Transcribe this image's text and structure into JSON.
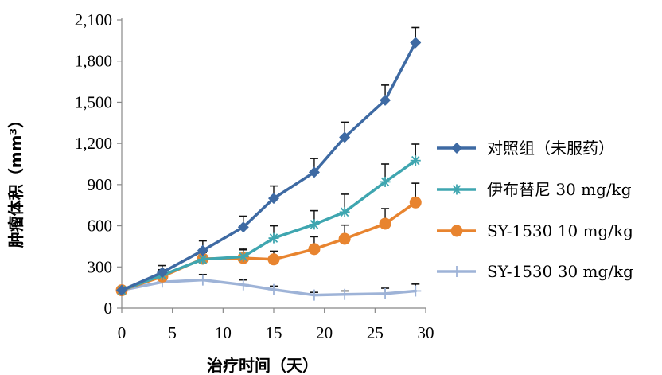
{
  "chart_data": {
    "type": "line",
    "xlabel": "治疗时间（天）",
    "ylabel": "肿瘤体积（mm³）",
    "xlim": [
      0,
      30
    ],
    "ylim": [
      0,
      2100
    ],
    "x_ticks": [
      "0",
      "5",
      "10",
      "15",
      "20",
      "25",
      "30"
    ],
    "y_ticks": [
      "0",
      "300",
      "600",
      "900",
      "1,200",
      "1,500",
      "1,800",
      "2,100"
    ],
    "legend_position": "right",
    "grid": false,
    "series": [
      {
        "name": "对照组（未服药）",
        "color": "#3E6AA3",
        "marker": "diamond",
        "x": [
          0,
          4,
          8,
          12,
          15,
          19,
          22,
          26,
          29
        ],
        "y": [
          130,
          260,
          420,
          590,
          800,
          990,
          1245,
          1515,
          1935
        ],
        "err": [
          0,
          50,
          70,
          80,
          90,
          100,
          110,
          110,
          110
        ]
      },
      {
        "name": "伊布替尼 30 mg/kg",
        "color": "#3FA6B0",
        "marker": "asterisk",
        "x": [
          0,
          4,
          8,
          12,
          15,
          19,
          22,
          26,
          29
        ],
        "y": [
          130,
          240,
          355,
          375,
          510,
          610,
          700,
          920,
          1075
        ],
        "err": [
          0,
          40,
          50,
          50,
          90,
          100,
          130,
          130,
          120
        ]
      },
      {
        "name": "SY-1530 10 mg/kg",
        "color": "#E8842F",
        "marker": "circle",
        "x": [
          0,
          4,
          8,
          12,
          15,
          19,
          22,
          26,
          29
        ],
        "y": [
          130,
          230,
          360,
          365,
          355,
          430,
          505,
          615,
          770
        ],
        "err": [
          0,
          40,
          60,
          70,
          60,
          90,
          100,
          110,
          140
        ]
      },
      {
        "name": "SY-1530 30 mg/kg",
        "color": "#9EB3D7",
        "marker": "plus",
        "x": [
          0,
          4,
          8,
          12,
          15,
          19,
          22,
          26,
          29
        ],
        "y": [
          130,
          190,
          205,
          170,
          135,
          95,
          100,
          105,
          125
        ],
        "err": [
          0,
          20,
          40,
          35,
          25,
          20,
          25,
          40,
          50
        ]
      }
    ]
  }
}
